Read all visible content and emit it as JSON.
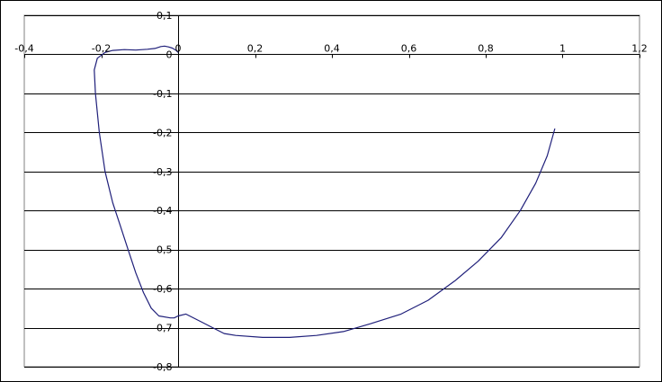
{
  "chart_data": {
    "type": "scatter",
    "title": "",
    "xlabel": "",
    "ylabel": "",
    "xlim": [
      -0.4,
      1.2
    ],
    "ylim": [
      -0.8,
      0.1
    ],
    "grid": "horizontal",
    "legend": "none",
    "x_tick_values": [
      -0.4,
      -0.2,
      0,
      0.2,
      0.4,
      0.6,
      0.8,
      1,
      1.2
    ],
    "x_tick_labels": [
      "-0,4",
      "-0,2",
      "0",
      "0,2",
      "0,4",
      "0,6",
      "0,8",
      "1",
      "1,2"
    ],
    "y_tick_values": [
      0.1,
      0,
      -0.1,
      -0.2,
      -0.3,
      -0.4,
      -0.5,
      -0.6,
      -0.7,
      -0.8
    ],
    "y_tick_labels": [
      "0,1",
      "0",
      "-0,1",
      "-0,2",
      "-0,3",
      "-0,4",
      "-0,5",
      "-0,6",
      "-0,7",
      "-0,8"
    ],
    "line_color": "#1f1f7a",
    "grid_color": "#000000",
    "series": [
      {
        "points": [
          [
            0.98,
            -0.19
          ],
          [
            0.96,
            -0.26
          ],
          [
            0.93,
            -0.33
          ],
          [
            0.89,
            -0.4
          ],
          [
            0.84,
            -0.47
          ],
          [
            0.78,
            -0.53
          ],
          [
            0.72,
            -0.58
          ],
          [
            0.65,
            -0.63
          ],
          [
            0.58,
            -0.665
          ],
          [
            0.5,
            -0.69
          ],
          [
            0.43,
            -0.71
          ],
          [
            0.36,
            -0.72
          ],
          [
            0.29,
            -0.725
          ],
          [
            0.22,
            -0.725
          ],
          [
            0.15,
            -0.72
          ],
          [
            0.12,
            -0.715
          ],
          [
            0.09,
            -0.7
          ],
          [
            0.06,
            -0.685
          ],
          [
            0.03,
            -0.67
          ],
          [
            0.02,
            -0.665
          ],
          [
            0.0,
            -0.67
          ],
          [
            -0.01,
            -0.675
          ],
          [
            -0.02,
            -0.675
          ],
          [
            -0.05,
            -0.67
          ],
          [
            -0.07,
            -0.65
          ],
          [
            -0.09,
            -0.61
          ],
          [
            -0.11,
            -0.56
          ],
          [
            -0.13,
            -0.5
          ],
          [
            -0.15,
            -0.44
          ],
          [
            -0.17,
            -0.38
          ],
          [
            -0.19,
            -0.3
          ],
          [
            -0.205,
            -0.2
          ],
          [
            -0.215,
            -0.1
          ],
          [
            -0.218,
            -0.04
          ],
          [
            -0.21,
            -0.01
          ],
          [
            -0.19,
            0.005
          ],
          [
            -0.17,
            0.01
          ],
          [
            -0.14,
            0.012
          ],
          [
            -0.11,
            0.011
          ],
          [
            -0.08,
            0.013
          ],
          [
            -0.06,
            0.015
          ],
          [
            -0.045,
            0.02
          ],
          [
            -0.035,
            0.021
          ],
          [
            -0.025,
            0.019
          ],
          [
            -0.015,
            0.016
          ],
          [
            -0.005,
            0.01
          ],
          [
            0.0,
            0.005
          ]
        ]
      }
    ]
  }
}
